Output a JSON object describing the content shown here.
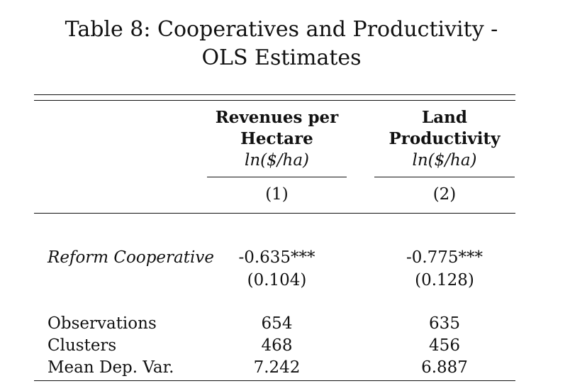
{
  "table": {
    "title_line1": "Table 8: Cooperatives and Productivity -",
    "title_line2": "OLS Estimates",
    "columns": [
      {
        "header_line1": "Revenues per",
        "header_line2": "Hectare",
        "unit": "ln($/ha)",
        "number": "(1)"
      },
      {
        "header_line1": "Land",
        "header_line2": "Productivity",
        "unit": "ln($/ha)",
        "number": "(2)"
      }
    ],
    "coef_row": {
      "label": "Reform Cooperative",
      "values": [
        "-0.635***",
        "-0.775***"
      ],
      "std_errors": [
        "(0.104)",
        "(0.128)"
      ]
    },
    "stats": [
      {
        "label": "Observations",
        "values": [
          "654",
          "635"
        ]
      },
      {
        "label": "Clusters",
        "values": [
          "468",
          "456"
        ]
      },
      {
        "label": "Mean Dep. Var.",
        "values": [
          "7.242",
          "6.887"
        ]
      }
    ]
  }
}
